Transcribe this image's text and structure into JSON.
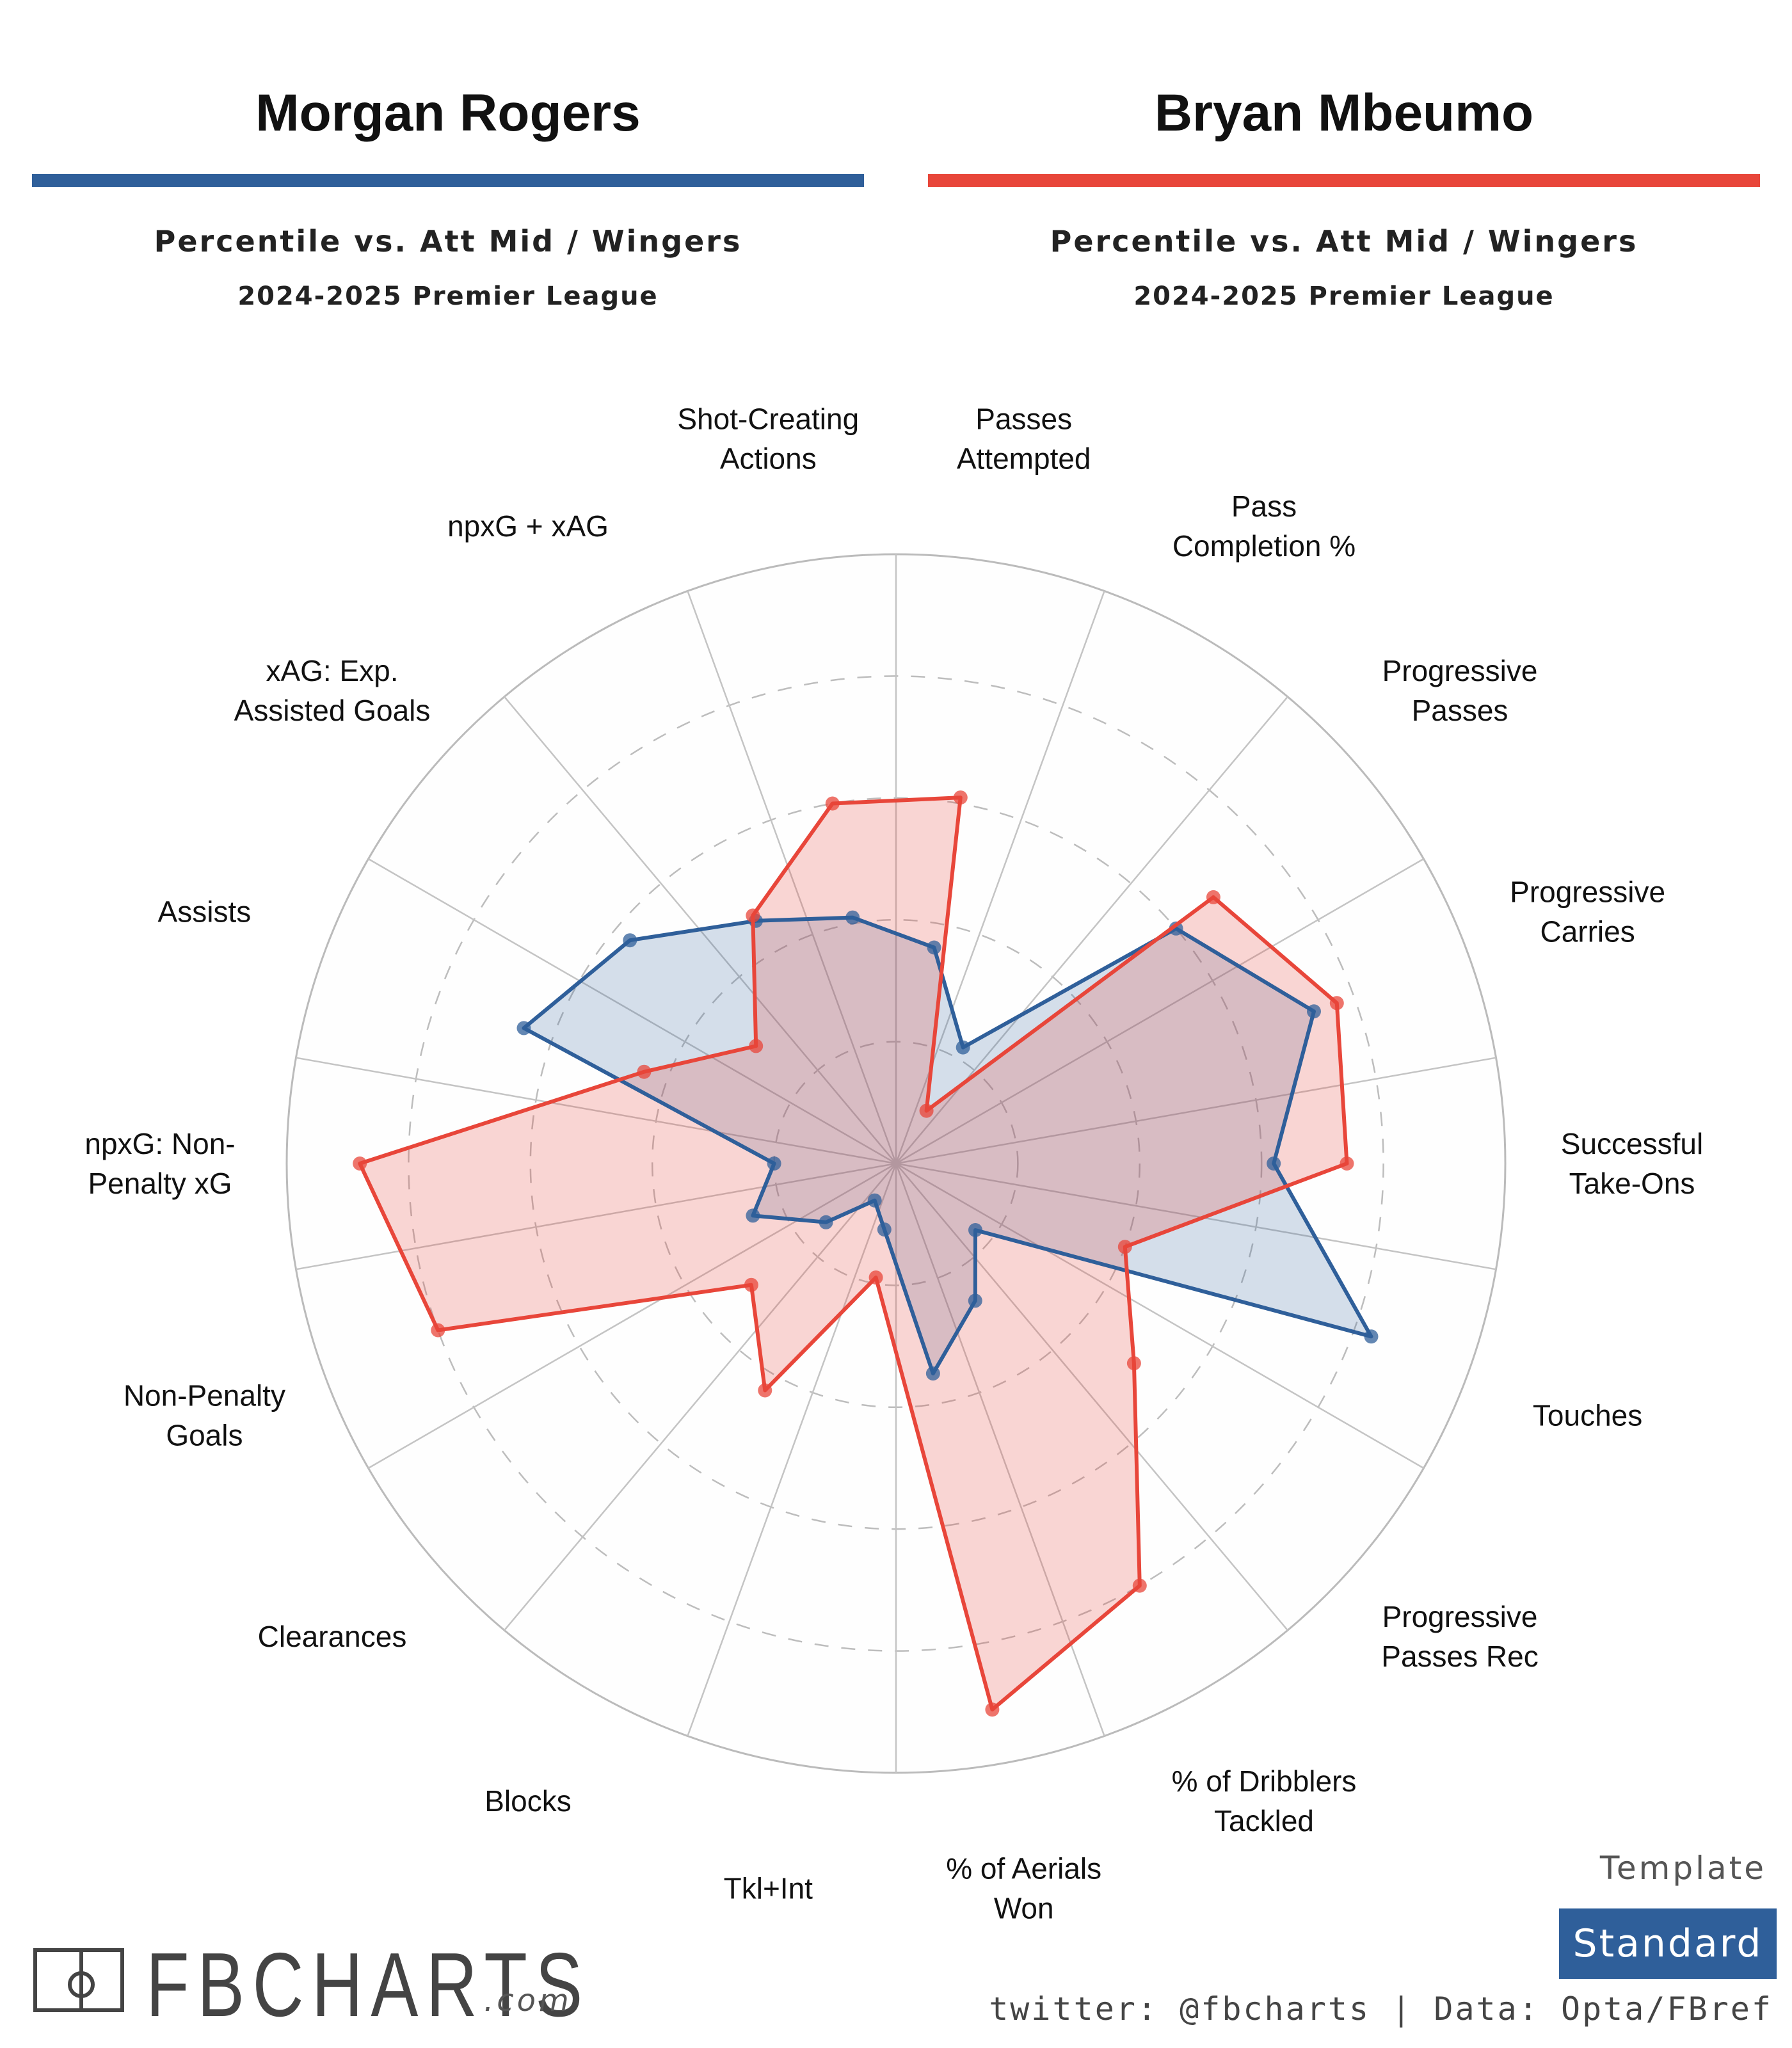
{
  "players": [
    {
      "name": "Morgan Rogers",
      "color": "#2f5f9a",
      "subtitle": "Percentile vs. Att Mid / Wingers",
      "season": "2024-2025 Premier League"
    },
    {
      "name": "Bryan Mbeumo",
      "color": "#e8463a",
      "subtitle": "Percentile vs. Att Mid / Wingers",
      "season": "2024-2025 Premier League"
    }
  ],
  "chart_data": {
    "type": "radar",
    "scale": "percentile",
    "rlim": [
      0,
      100
    ],
    "ring_values": [
      20,
      40,
      60,
      80
    ],
    "grid": true,
    "categories": [
      "Passes\nAttempted",
      "Pass\nCompletion %",
      "Progressive\nPasses",
      "Progressive\nCarries",
      "Successful\nTake-Ons",
      "Touches",
      "Progressive\nPasses Rec",
      "% of Dribblers\nTackled",
      "% of Aerials\nWon",
      "Tkl+Int",
      "Blocks",
      "Clearances",
      "Non-Penalty\nGoals",
      "npxG: Non-\nPenalty xG",
      "Assists",
      "xAG: Exp.\nAssisted Goals",
      "npxG + xAG",
      "Shot-Creating\nActions"
    ],
    "series": [
      {
        "name": "Morgan Rogers",
        "color": "#2f5f9a",
        "values": [
          36,
          22,
          60,
          73,
          62,
          83,
          17,
          26,
          35,
          11,
          7,
          15,
          25,
          20,
          65,
          57,
          46,
          41
        ]
      },
      {
        "name": "Bryan Mbeumo",
        "color": "#e8463a",
        "values": [
          61,
          10,
          68,
          77,
          74,
          40,
          51,
          80,
          91,
          19,
          43,
          31,
          80,
          88,
          44,
          30,
          47,
          60
        ]
      }
    ]
  },
  "branding": {
    "logo_text": "FBCHARTS",
    "logo_suffix": ".com",
    "template_label": "Template",
    "template_value": "Standard",
    "template_color": "#2f5f9a",
    "credits": "twitter: @fbcharts | Data: Opta/FBref"
  }
}
